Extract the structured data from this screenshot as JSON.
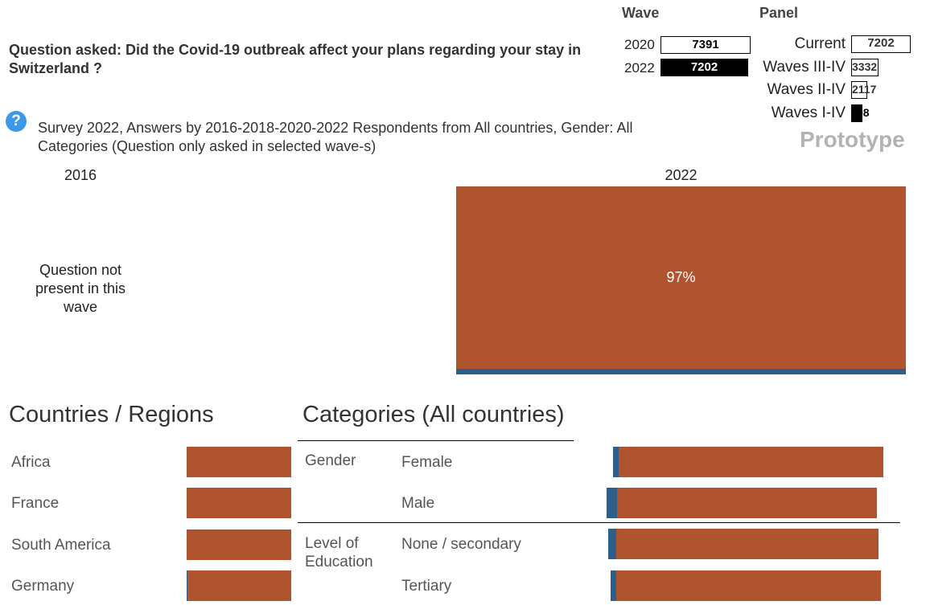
{
  "question": "Question asked: Did the Covid-19 outbreak affect your plans regarding your stay in Switzerland ?",
  "wave": {
    "header": "Wave",
    "rows": [
      {
        "year": "2020",
        "value": "7391",
        "selected": false
      },
      {
        "year": "2022",
        "value": "7202",
        "selected": true
      }
    ]
  },
  "panel": {
    "header": "Panel",
    "rows": [
      {
        "label": "Current",
        "value": "7202",
        "fill": 0.0
      },
      {
        "label": "Waves III-IV",
        "value": "3332",
        "fill": 0.0
      },
      {
        "label": "Waves II-IV",
        "value": "2117",
        "fill": 0.0
      },
      {
        "label": "Waves I-IV",
        "value": "98",
        "fill": 1.0
      }
    ]
  },
  "watermark": "Prototype",
  "help_icon": "question-mark-icon",
  "subtitle": "Survey 2022, Answers by 2016-2018-2020-2022 Respondents from All countries, Gender: All Categories (Question only asked in selected wave-s)",
  "waves_display": {
    "left_year": "2016",
    "right_year": "2022",
    "not_present": "Question not present in this wave"
  },
  "chart_data": [
    {
      "type": "bar",
      "title": "2022",
      "categories": [
        "2022"
      ],
      "series": [
        {
          "name": "",
          "values": [
            97
          ],
          "color": "#b0532f",
          "label": "97%"
        },
        {
          "name": "",
          "values": [
            3
          ],
          "color": "#2e5f8a"
        }
      ],
      "ylim": [
        0,
        100
      ]
    },
    {
      "type": "bar",
      "title": "Countries / Regions",
      "categories": [
        "Africa",
        "France",
        "South America",
        "Germany"
      ],
      "series": [
        {
          "name": "",
          "values": [
            100,
            100,
            100,
            99
          ],
          "color": "#b0532f"
        },
        {
          "name": "",
          "values": [
            0,
            0,
            0,
            1
          ],
          "color": "#2e5f8a"
        }
      ],
      "ylim": [
        0,
        100
      ]
    },
    {
      "type": "bar",
      "title": "Categories (All countries)",
      "groups": [
        {
          "name": "Gender",
          "categories": [
            "Female",
            "Male"
          ]
        },
        {
          "name": "Level of Education",
          "categories": [
            "None / secondary",
            "Tertiary"
          ]
        }
      ],
      "categories": [
        "Female",
        "Male",
        "None / secondary",
        "Tertiary"
      ],
      "series": [
        {
          "name": "",
          "values": [
            98,
            96,
            97,
            98
          ],
          "color": "#b0532f"
        },
        {
          "name": "",
          "values": [
            2,
            4,
            3,
            2
          ],
          "color": "#2e5f8a"
        }
      ],
      "ylim": [
        0,
        100
      ]
    }
  ],
  "colors": {
    "accent": "#b0532f",
    "secondary": "#2e5f8a",
    "help": "#3a99e8",
    "watermark": "#b3b3b3"
  }
}
